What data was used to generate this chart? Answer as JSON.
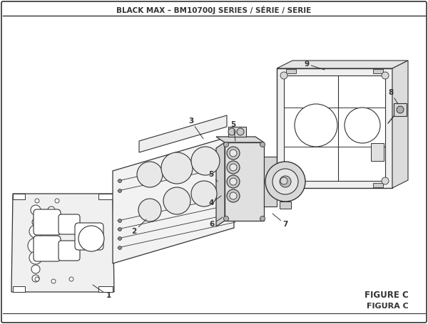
{
  "title": "BLACK MAX – BM10700J SERIES / SÉRIE / SERIE",
  "figure_label": "FIGURE C",
  "figura_label": "FIGURA C",
  "bg_color": "#ffffff",
  "line_color": "#333333",
  "title_fontsize": 7.5,
  "fig_label_fontsize": 8.5
}
